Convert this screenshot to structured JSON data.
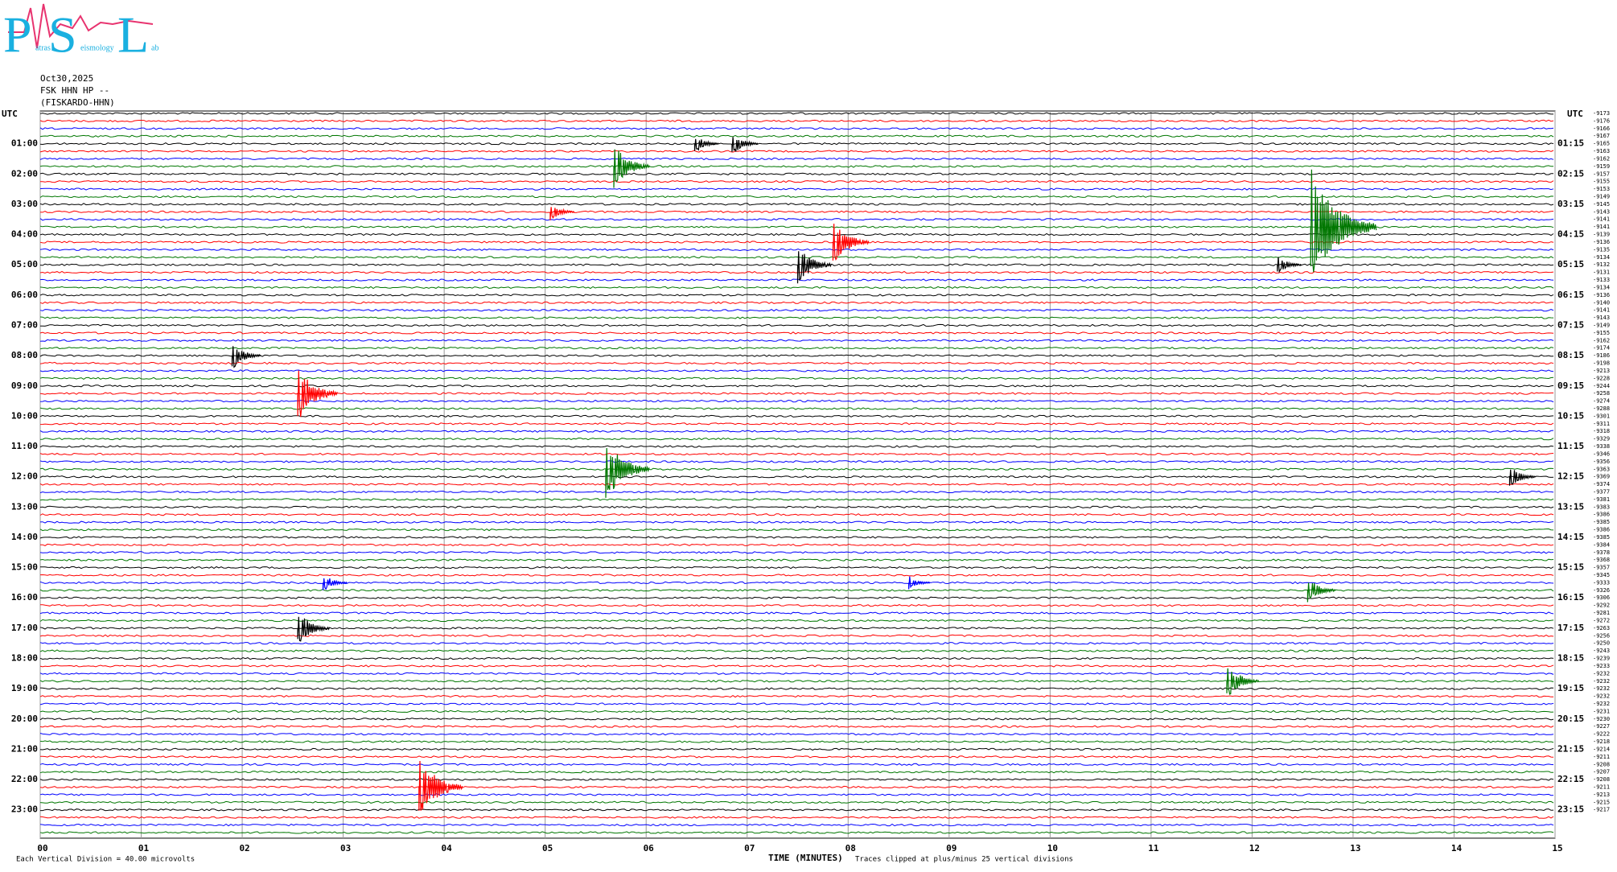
{
  "chart_data": {
    "type": "helicorder",
    "logo": {
      "letters": [
        "P",
        "S",
        "L"
      ],
      "words": [
        "atras",
        "eismology",
        "ab"
      ]
    },
    "date": "Oct30,2025",
    "station": "FSK HHN HP --",
    "station_name": "(FISKARDO-HHN)",
    "left_axis_title": "UTC",
    "right_axis_title": "UTC",
    "left_labels": [
      "01:00",
      "02:00",
      "03:00",
      "04:00",
      "05:00",
      "06:00",
      "07:00",
      "08:00",
      "09:00",
      "10:00",
      "11:00",
      "12:00",
      "13:00",
      "14:00",
      "15:00",
      "16:00",
      "17:00",
      "18:00",
      "19:00",
      "20:00",
      "21:00",
      "22:00",
      "23:00"
    ],
    "right_labels": [
      "01:15",
      "02:15",
      "03:15",
      "04:15",
      "05:15",
      "06:15",
      "07:15",
      "08:15",
      "09:15",
      "10:15",
      "11:15",
      "12:15",
      "13:15",
      "14:15",
      "15:15",
      "16:15",
      "17:15",
      "18:15",
      "19:15",
      "20:15",
      "21:15",
      "22:15",
      "23:15"
    ],
    "trace_offsets": [
      -9173,
      -9176,
      -9166,
      -9167,
      -9165,
      -9163,
      -9162,
      -9159,
      -9157,
      -9155,
      -9153,
      -9149,
      -9145,
      -9143,
      -9141,
      -9141,
      -9139,
      -9136,
      -9135,
      -9134,
      -9132,
      -9131,
      -9133,
      -9134,
      -9136,
      -9140,
      -9141,
      -9143,
      -9149,
      -9155,
      -9162,
      -9174,
      -9186,
      -9198,
      -9213,
      -9228,
      -9244,
      -9258,
      -9274,
      -9288,
      -9301,
      -9311,
      -9318,
      -9329,
      -9338,
      -9346,
      -9356,
      -9363,
      -9369,
      -9374,
      -9377,
      -9381,
      -9383,
      -9386,
      -9385,
      -9386,
      -9385,
      -9384,
      -9378,
      -9368,
      -9357,
      -9345,
      -9333,
      -9326,
      -9306,
      -9292,
      -9281,
      -9272,
      -9263,
      -9256,
      -9250,
      -9243,
      -9239,
      -9233,
      -9232,
      -9232,
      -9232,
      -9232,
      -9232,
      -9231,
      -9230,
      -9227,
      -9222,
      -9218,
      -9214,
      -9211,
      -9208,
      -9207,
      -9208,
      -9211,
      -9213,
      -9215,
      -9217
    ],
    "trace_colors": [
      "#000000",
      "#ff0000",
      "#0000ff",
      "#007700"
    ],
    "xlim": [
      0,
      15
    ],
    "xticks": [
      {
        "value": 0,
        "label": "00"
      },
      {
        "value": 1,
        "label": "01"
      },
      {
        "value": 2,
        "label": "02"
      },
      {
        "value": 3,
        "label": "03"
      },
      {
        "value": 4,
        "label": "04"
      },
      {
        "value": 5,
        "label": "05"
      },
      {
        "value": 6,
        "label": "06"
      },
      {
        "value": 7,
        "label": "07"
      },
      {
        "value": 8,
        "label": "08"
      },
      {
        "value": 9,
        "label": "09"
      },
      {
        "value": 10,
        "label": "10"
      },
      {
        "value": 11,
        "label": "11"
      },
      {
        "value": 12,
        "label": "12"
      },
      {
        "value": 13,
        "label": "13"
      },
      {
        "value": 14,
        "label": "14"
      },
      {
        "value": 15,
        "label": "15"
      }
    ],
    "xlabel": "TIME (MINUTES)",
    "clip_note": "Traces clipped at plus/minus 25 vertical divisions",
    "scale_note": "Each Vertical Division =   40.00 microvolts",
    "events": [
      {
        "trace": 15,
        "minute": 12.58,
        "size": 25
      },
      {
        "trace": 4,
        "minute": 6.48,
        "size": 4
      },
      {
        "trace": 4,
        "minute": 6.85,
        "size": 5
      },
      {
        "trace": 7,
        "minute": 5.68,
        "size": 10
      },
      {
        "trace": 13,
        "minute": 5.05,
        "size": 4
      },
      {
        "trace": 17,
        "minute": 7.85,
        "size": 10
      },
      {
        "trace": 20,
        "minute": 7.5,
        "size": 9
      },
      {
        "trace": 20,
        "minute": 12.25,
        "size": 4
      },
      {
        "trace": 32,
        "minute": 1.9,
        "size": 6
      },
      {
        "trace": 37,
        "minute": 2.55,
        "size": 12
      },
      {
        "trace": 47,
        "minute": 5.6,
        "size": 14
      },
      {
        "trace": 48,
        "minute": 14.55,
        "size": 5
      },
      {
        "trace": 62,
        "minute": 2.8,
        "size": 4
      },
      {
        "trace": 62,
        "minute": 8.6,
        "size": 3
      },
      {
        "trace": 63,
        "minute": 12.55,
        "size": 6
      },
      {
        "trace": 68,
        "minute": 2.55,
        "size": 8
      },
      {
        "trace": 75,
        "minute": 11.75,
        "size": 8
      },
      {
        "trace": 89,
        "minute": 3.75,
        "size": 14
      }
    ]
  }
}
